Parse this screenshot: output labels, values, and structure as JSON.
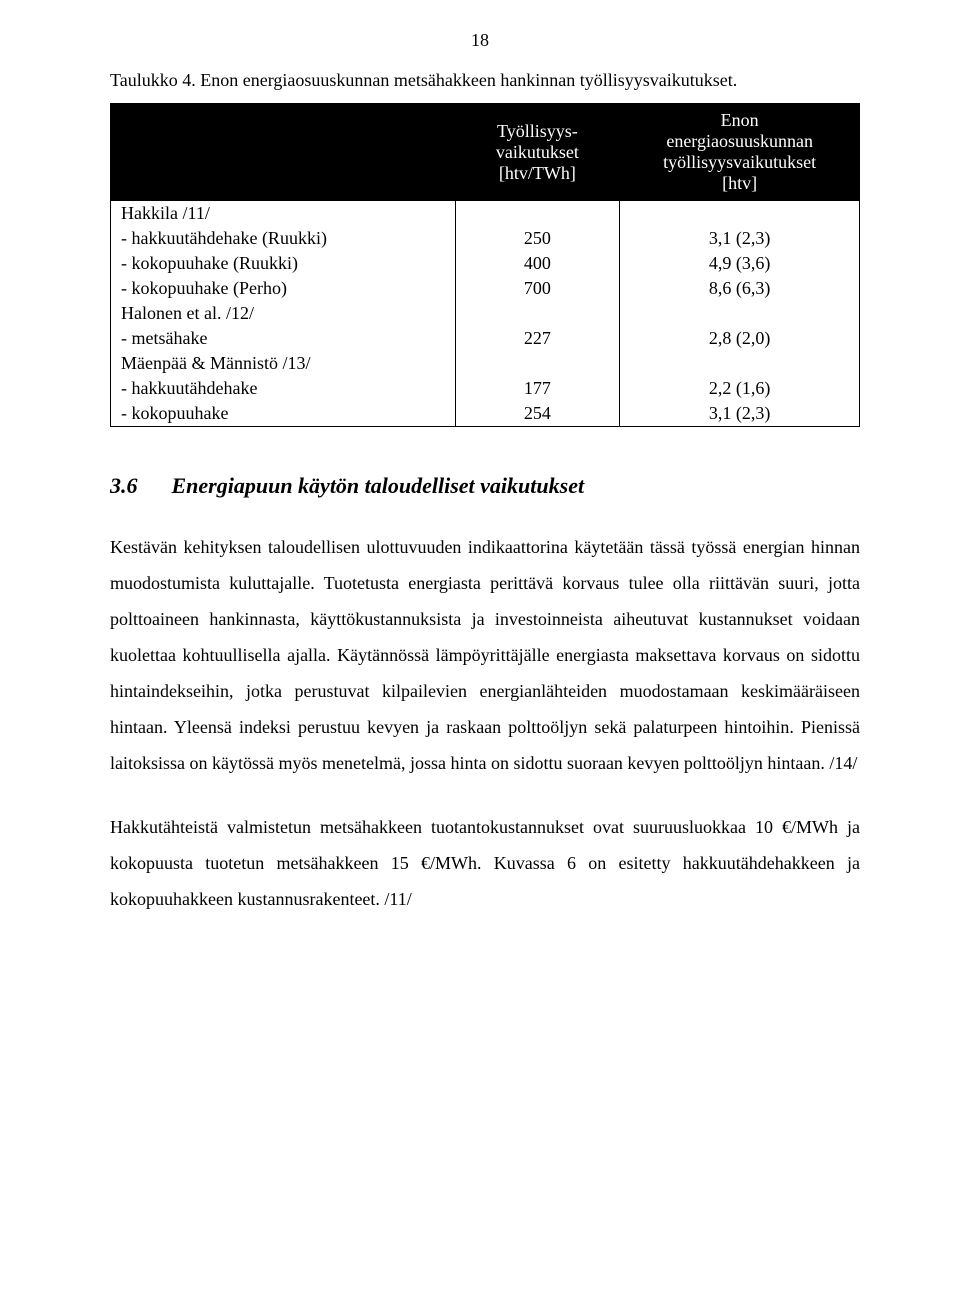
{
  "pageNumber": "18",
  "table": {
    "caption": "Taulukko 4. Enon energiaosuuskunnan metsähakkeen hankinnan työllisyysvaikutukset.",
    "header": {
      "col2_line1": "Työllisyys-",
      "col2_line2": "vaikutukset",
      "col2_line3": "[htv/TWh]",
      "col3_line1": "Enon",
      "col3_line2": "energiaosuuskunnan",
      "col3_line3": "työllisyysvaikutukset",
      "col3_line4": "[htv]"
    },
    "groups": [
      {
        "label": "Hakkila /11/",
        "rows": [
          {
            "label": "- hakkuutähdehake (Ruukki)",
            "mid": "250",
            "right": "3,1 (2,3)"
          },
          {
            "label": "- kokopuuhake (Ruukki)",
            "mid": "400",
            "right": "4,9 (3,6)"
          },
          {
            "label": "- kokopuuhake (Perho)",
            "mid": "700",
            "right": "8,6 (6,3)"
          }
        ]
      },
      {
        "label": "Halonen et al. /12/",
        "rows": [
          {
            "label": "- metsähake",
            "mid": "227",
            "right": "2,8 (2,0)"
          }
        ]
      },
      {
        "label": "Mäenpää & Männistö /13/",
        "rows": [
          {
            "label": "- hakkuutähdehake",
            "mid": "177",
            "right": "2,2 (1,6)"
          },
          {
            "label": "- kokopuuhake",
            "mid": "254",
            "right": "3,1 (2,3)"
          }
        ]
      }
    ]
  },
  "section": {
    "num": "3.6",
    "title": "Energiapuun käytön taloudelliset vaikutukset"
  },
  "paragraphs": {
    "p1": "Kestävän kehityksen taloudellisen ulottuvuuden indikaattorina käytetään tässä työssä energian hinnan muodostumista kuluttajalle. Tuotetusta energiasta perittävä korvaus tulee olla riittävän suuri, jotta polttoaineen hankinnasta, käyttökustannuksista ja investoinneista aiheutuvat kustannukset voidaan kuolettaa kohtuullisella ajalla. Käytännössä lämpöyrittäjälle energiasta maksettava korvaus on sidottu hintaindekseihin, jotka perustuvat kilpailevien energianlähteiden muodostamaan keskimääräiseen hintaan. Yleensä indeksi perustuu kevyen ja raskaan polttoöljyn sekä palaturpeen hintoihin. Pienissä laitoksissa on käytössä myös menetelmä, jossa hinta on sidottu suoraan kevyen polttoöljyn hintaan. /14/",
    "p2": "Hakkutähteistä valmistetun metsähakkeen tuotantokustannukset ovat suuruusluokkaa 10 €/MWh ja kokopuusta tuotetun metsähakkeen 15 €/MWh. Kuvassa 6 on esitetty hakkuutähdehakkeen ja kokopuuhakkeen kustannusrakenteet. /11/"
  }
}
